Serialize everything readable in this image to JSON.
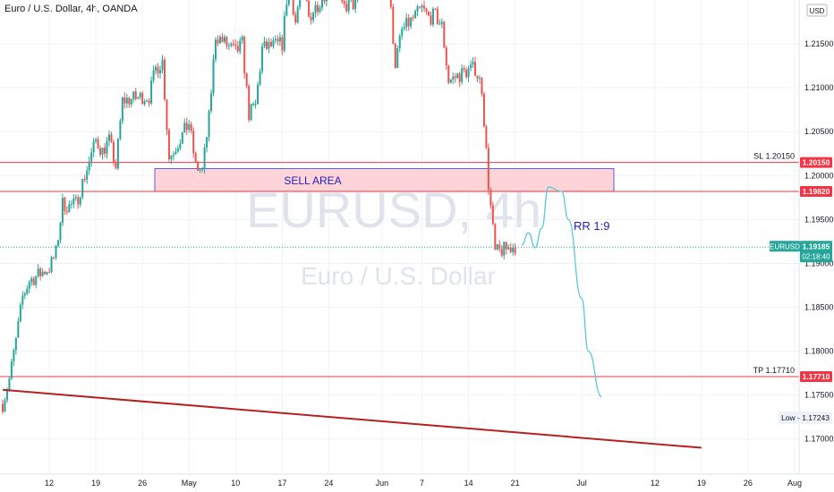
{
  "header": {
    "symbol_title": "Euro / U.S. Dollar, 4h, OANDA",
    "currency_badge": "USD"
  },
  "watermark": {
    "ticker": "EURUSD, 4h",
    "name": "Euro / U.S. Dollar"
  },
  "chart_data": {
    "type": "candlestick",
    "y_axis": {
      "range": [
        1.166,
        1.22
      ],
      "ticks": [
        "1.21500",
        "1.21000",
        "1.20500",
        "1.20000",
        "1.19500",
        "1.19000",
        "1.18500",
        "1.18000",
        "1.17500",
        "1.17000"
      ],
      "tick_values": [
        1.215,
        1.21,
        1.205,
        1.2,
        1.195,
        1.19,
        1.185,
        1.18,
        1.175,
        1.17
      ]
    },
    "x_axis": {
      "ticks": [
        "12",
        "19",
        "26",
        "May",
        "10",
        "17",
        "24",
        "Jun",
        "7",
        "14",
        "21",
        "Jul",
        "12",
        "19",
        "26",
        "Aug"
      ],
      "tick_dates": [
        "2021-04-12",
        "2021-04-19",
        "2021-04-26",
        "2021-05-03",
        "2021-05-10",
        "2021-05-17",
        "2021-05-24",
        "2021-06-01",
        "2021-06-07",
        "2021-06-14",
        "2021-06-21",
        "2021-07-01",
        "2021-07-12",
        "2021-07-19",
        "2021-07-26",
        "2021-08-02"
      ],
      "range": [
        "2021-04-05",
        "2021-08-02"
      ]
    },
    "price_path": [
      [
        "2021-04-05",
        1.174
      ],
      [
        "2021-04-06",
        1.1768
      ],
      [
        "2021-04-07",
        1.1812
      ],
      [
        "2021-04-08",
        1.1862
      ],
      [
        "2021-04-09",
        1.188
      ],
      [
        "2021-04-12",
        1.1895
      ],
      [
        "2021-04-13",
        1.1912
      ],
      [
        "2021-04-14",
        1.1968
      ],
      [
        "2021-04-15",
        1.1965
      ],
      [
        "2021-04-16",
        1.1968
      ],
      [
        "2021-04-19",
        1.204
      ],
      [
        "2021-04-20",
        1.2028
      ],
      [
        "2021-04-21",
        1.204
      ],
      [
        "2021-04-22",
        1.201
      ],
      [
        "2021-04-23",
        1.2085
      ],
      [
        "2021-04-26",
        1.209
      ],
      [
        "2021-04-27",
        1.209
      ],
      [
        "2021-04-28",
        1.2122
      ],
      [
        "2021-04-29",
        1.213
      ],
      [
        "2021-04-30",
        1.202
      ],
      [
        "2021-05-03",
        1.206
      ],
      [
        "2021-05-04",
        1.201
      ],
      [
        "2021-05-05",
        1.2005
      ],
      [
        "2021-05-06",
        1.2065
      ],
      [
        "2021-05-07",
        1.216
      ],
      [
        "2021-05-10",
        1.214
      ],
      [
        "2021-05-11",
        1.215
      ],
      [
        "2021-05-12",
        1.207
      ],
      [
        "2021-05-13",
        1.208
      ],
      [
        "2021-05-14",
        1.2145
      ],
      [
        "2021-05-17",
        1.215
      ],
      [
        "2021-05-18",
        1.2225
      ],
      [
        "2021-05-19",
        1.2175
      ],
      [
        "2021-05-20",
        1.2225
      ],
      [
        "2021-05-21",
        1.218
      ],
      [
        "2021-05-24",
        1.2215
      ],
      [
        "2021-05-25",
        1.2245
      ],
      [
        "2021-05-26",
        1.219
      ],
      [
        "2021-05-27",
        1.2195
      ],
      [
        "2021-05-28",
        1.2195
      ],
      [
        "2021-05-31",
        1.2225
      ],
      [
        "2021-06-01",
        1.221
      ],
      [
        "2021-06-02",
        1.2215
      ],
      [
        "2021-06-03",
        1.2128
      ],
      [
        "2021-06-04",
        1.2165
      ],
      [
        "2021-06-07",
        1.219
      ],
      [
        "2021-06-08",
        1.218
      ],
      [
        "2021-06-09",
        1.2182
      ],
      [
        "2021-06-10",
        1.217
      ],
      [
        "2021-06-11",
        1.2108
      ],
      [
        "2021-06-14",
        1.212
      ],
      [
        "2021-06-15",
        1.2122
      ],
      [
        "2021-06-16",
        1.21
      ],
      [
        "2021-06-17",
        1.199
      ],
      [
        "2021-06-18",
        1.1912
      ],
      [
        "2021-06-21",
        1.192
      ]
    ],
    "series": [
      {
        "name": "EURUSD",
        "last_price": 1.19185,
        "countdown": "02:18:40"
      }
    ],
    "levels": [
      {
        "label": "SL 1.20150",
        "price_badge": "1.20150",
        "value": 1.2015,
        "color": "#f23645"
      },
      {
        "value": 1.1982,
        "price_badge": "1.19820",
        "color": "#f23645"
      },
      {
        "label": "TP 1.17710",
        "price_badge": "1.17710",
        "value": 1.1771,
        "color": "#f23645"
      }
    ],
    "low_marker": {
      "text": "Low - 1.17243",
      "value": 1.17243
    },
    "annotations": {
      "zone_label": "SELL AREA",
      "zone_top": 1.2008,
      "zone_bottom": 1.1982,
      "rr_text": "RR 1:9"
    },
    "trendline": {
      "from": [
        "2021-04-05",
        1.1756
      ],
      "to": [
        "2021-07-19",
        1.169
      ],
      "color": "#b22222"
    },
    "projection": [
      [
        "2021-06-22",
        1.1921
      ],
      [
        "2021-06-23",
        1.1935
      ],
      [
        "2021-06-24",
        1.1918
      ],
      [
        "2021-06-25",
        1.194
      ],
      [
        "2021-06-26",
        1.1987
      ],
      [
        "2021-06-28",
        1.1982
      ],
      [
        "2021-06-29",
        1.195
      ],
      [
        "2021-07-01",
        1.186
      ],
      [
        "2021-07-02",
        1.18
      ],
      [
        "2021-07-04",
        1.1748
      ]
    ],
    "colors": {
      "up": "#26a69a",
      "down": "#ef5350",
      "level": "#f23645",
      "zone_fill": "#ffcdd2",
      "zone_border": "#5c5cd6",
      "projection": "#5bc8d8",
      "last_price": "#26a69a",
      "watermark": "#e0e3eb"
    }
  }
}
